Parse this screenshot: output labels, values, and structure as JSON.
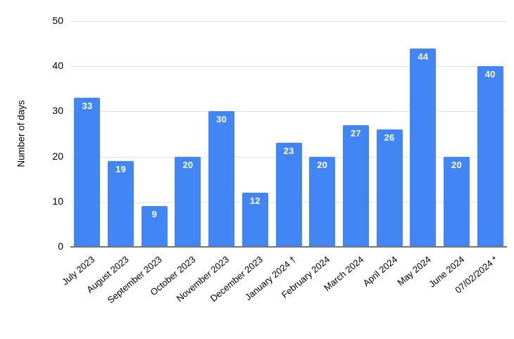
{
  "chart_data": {
    "type": "bar",
    "categories": [
      "July 2023",
      "August 2023",
      "September 2023",
      "October 2023",
      "November 2023",
      "December 2023",
      "January 2024 †",
      "February 2024",
      "March 2024",
      "April 2024",
      "May 2024",
      "June 2024",
      "07/02/2024 *"
    ],
    "values": [
      33,
      19,
      9,
      20,
      30,
      12,
      23,
      20,
      27,
      26,
      44,
      20,
      40
    ],
    "title": "",
    "xlabel": "",
    "ylabel": "Number of days",
    "ylim": [
      0,
      50
    ],
    "yticks": [
      0,
      10,
      20,
      30,
      40,
      50
    ],
    "grid": true,
    "legend": "none"
  },
  "colors": {
    "bar": "#4285f4",
    "value_label": "#ffffff",
    "gridline": "#e3e3e3",
    "axis_line": "#757575",
    "text": "#000000",
    "background": "#ffffff"
  }
}
